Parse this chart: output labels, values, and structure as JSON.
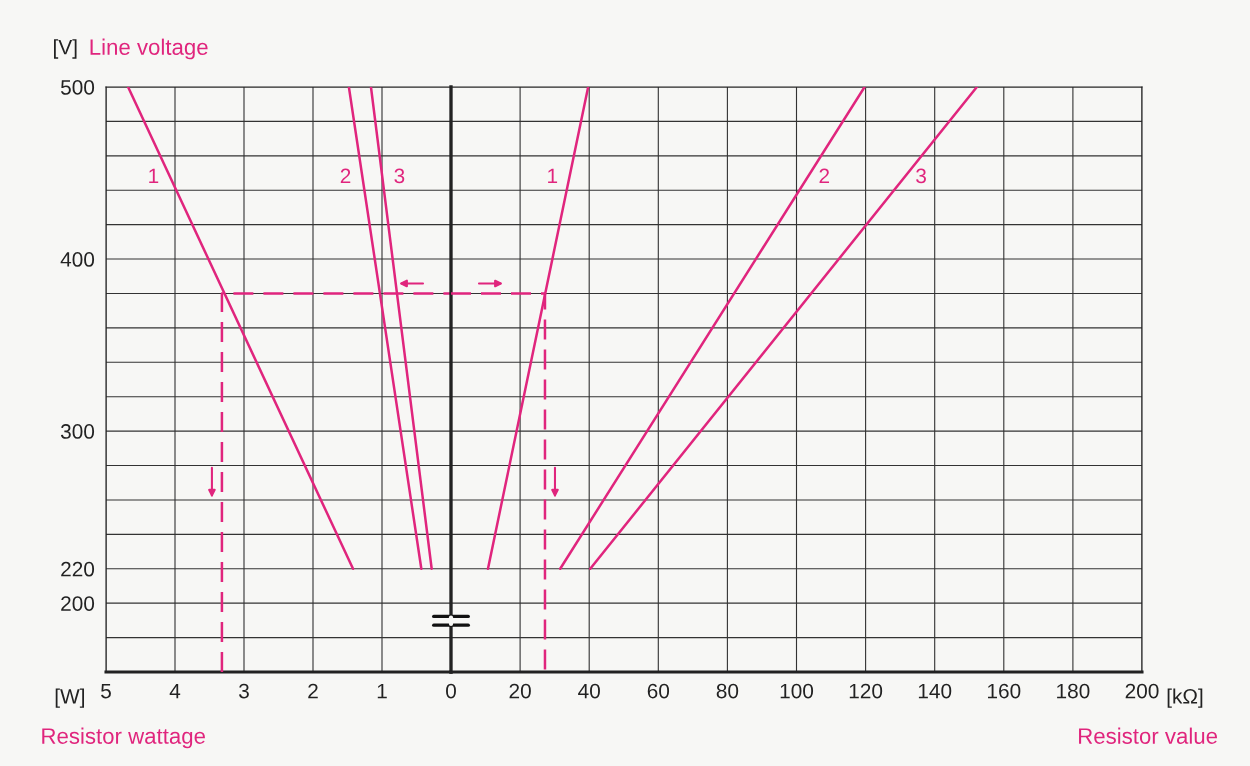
{
  "chart_data": [
    {
      "type": "line",
      "ylabel": "Line voltage",
      "xlabel": "Resistor wattage",
      "annotations": [
        "[V]",
        "[W]"
      ],
      "series": [
        {
          "name": "1",
          "color": "#e0257d",
          "x": [
            4.68,
            1.42
          ],
          "values": [
            500,
            220
          ]
        },
        {
          "name": "2",
          "color": "#e0257d",
          "x": [
            1.48,
            0.43
          ],
          "values": [
            500,
            220
          ]
        },
        {
          "name": "3",
          "color": "#e0257d",
          "x": [
            1.16,
            0.28
          ],
          "values": [
            500,
            220
          ]
        },
        {
          "color": "#e0257d",
          "line_style": "dashed",
          "x": [
            3.32,
            3.32,
            0
          ],
          "values": [
            160,
            380,
            380
          ]
        }
      ],
      "xlim": [
        5,
        0
      ],
      "xticks": [
        5,
        4,
        3,
        2,
        1,
        0
      ],
      "ylim": [
        160,
        500
      ],
      "yticks": [
        {
          "value": 180,
          "label": null
        },
        200,
        220,
        {
          "value": 240,
          "label": null
        },
        {
          "value": 260,
          "label": null
        },
        {
          "value": 280,
          "label": null
        },
        300,
        {
          "value": 320,
          "label": null
        },
        {
          "value": 340,
          "label": null
        },
        {
          "value": 360,
          "label": null
        },
        {
          "value": 380,
          "label": null
        },
        400,
        {
          "value": 420,
          "label": null
        },
        {
          "value": 440,
          "label": null
        },
        {
          "value": 460,
          "label": null
        },
        {
          "value": 480,
          "label": null
        },
        500
      ],
      "grid": true
    },
    {
      "type": "line",
      "xlabel": "Resistor value",
      "annotations": [
        "[kΩ]"
      ],
      "series": [
        {
          "name": "1",
          "color": "#e0257d",
          "x": [
            10.7,
            39.7
          ],
          "values": [
            220,
            500
          ]
        },
        {
          "name": "2",
          "color": "#e0257d",
          "x": [
            31.6,
            119.7
          ],
          "values": [
            220,
            500
          ]
        },
        {
          "name": "3",
          "color": "#e0257d",
          "x": [
            40.3,
            152.2
          ],
          "values": [
            220,
            500
          ]
        },
        {
          "color": "#e0257d",
          "line_style": "dashed",
          "x": [
            0,
            27.2,
            27.2
          ],
          "values": [
            380,
            380,
            160
          ]
        }
      ],
      "xlim": [
        0,
        200
      ],
      "xticks": [
        20,
        40,
        60,
        80,
        100,
        120,
        140,
        160,
        180,
        200
      ],
      "ylim": [
        160,
        500
      ],
      "yticks": [
        {
          "value": 180,
          "label": null
        },
        200,
        220,
        {
          "value": 240,
          "label": null
        },
        {
          "value": 260,
          "label": null
        },
        {
          "value": 280,
          "label": null
        },
        300,
        {
          "value": 320,
          "label": null
        },
        {
          "value": 340,
          "label": null
        },
        {
          "value": 360,
          "label": null
        },
        {
          "value": 380,
          "label": null
        },
        400,
        {
          "value": 420,
          "label": null
        },
        {
          "value": 440,
          "label": null
        },
        {
          "value": 460,
          "label": null
        },
        {
          "value": 480,
          "label": null
        },
        500
      ],
      "grid": true,
      "tick_labels": "x"
    }
  ]
}
